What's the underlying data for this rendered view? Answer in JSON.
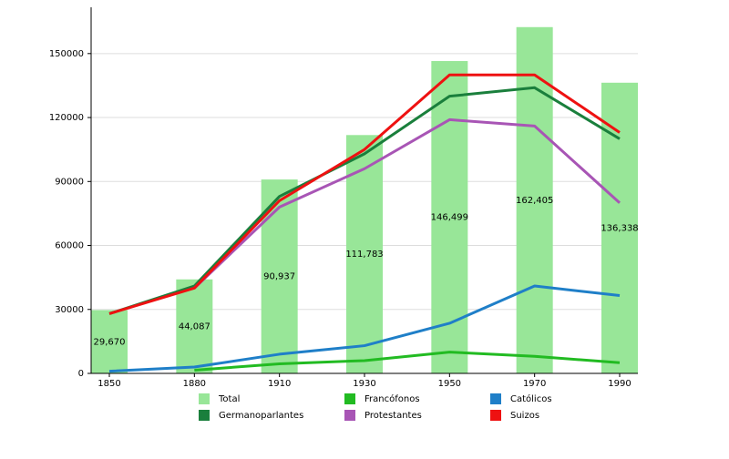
{
  "chart_data": {
    "type": "combo",
    "categories": [
      "1850",
      "1880",
      "1910",
      "1930",
      "1950",
      "1970",
      "1990"
    ],
    "series": [
      {
        "name": "Total",
        "type": "bar",
        "color": "#98e698",
        "values": [
          29670,
          44087,
          90937,
          111783,
          146499,
          162405,
          136338
        ],
        "value_labels": [
          "29,670",
          "44,087",
          "90,937",
          "111,783",
          "146,499",
          "162,405",
          "136,338"
        ]
      },
      {
        "name": "Francófonos",
        "type": "line",
        "color": "#22bb22",
        "values": [
          null,
          1500,
          4500,
          6000,
          10000,
          8000,
          5000
        ]
      },
      {
        "name": "Católicos",
        "type": "line",
        "color": "#1f7fc8",
        "values": [
          1000,
          3000,
          9000,
          13000,
          23500,
          41000,
          36500
        ]
      },
      {
        "name": "Germanoparlantes",
        "type": "line",
        "color": "#1a7f3c",
        "values": [
          28000,
          41000,
          83000,
          103000,
          130000,
          134000,
          110000
        ]
      },
      {
        "name": "Protestantes",
        "type": "line",
        "color": "#a855b5",
        "values": [
          null,
          40000,
          78000,
          96000,
          119000,
          116000,
          80000
        ]
      },
      {
        "name": "Suizos",
        "type": "line",
        "color": "#ee1111",
        "values": [
          28000,
          40000,
          81000,
          105000,
          140000,
          140000,
          113000
        ]
      }
    ],
    "ylim": [
      0,
      170000
    ],
    "yticks": [
      0,
      30000,
      60000,
      90000,
      120000,
      150000
    ],
    "grid": true
  }
}
